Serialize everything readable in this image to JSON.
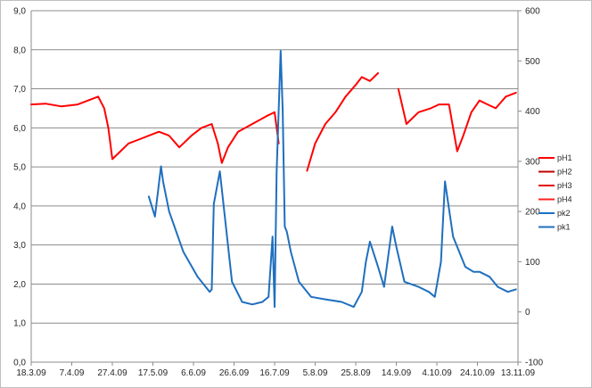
{
  "chart_data": {
    "type": "line",
    "x_ticks": [
      "18.3.09",
      "7.4.09",
      "27.4.09",
      "17.5.09",
      "6.6.09",
      "26.6.09",
      "16.7.09",
      "5.8.09",
      "25.8.09",
      "14.9.09",
      "4.10.09",
      "24.10.09",
      "13.11.09"
    ],
    "xlim": [
      "18.3.09",
      "13.11.09"
    ],
    "y_left": {
      "ylim": [
        0,
        9
      ],
      "ticks": [
        "0,0",
        "1,0",
        "2,0",
        "3,0",
        "4,0",
        "5,0",
        "6,0",
        "7,0",
        "8,0",
        "9,0"
      ]
    },
    "y_right": {
      "ylim": [
        -100,
        600
      ],
      "ticks": [
        "-100",
        "0",
        "100",
        "200",
        "300",
        "400",
        "500",
        "600"
      ]
    },
    "grid": "horizontal",
    "legend_position": "right",
    "legend": [
      {
        "name": "pH1",
        "color": "#ff0000"
      },
      {
        "name": "pH2",
        "color": "#c00000"
      },
      {
        "name": "pH3",
        "color": "#e00000"
      },
      {
        "name": "pH4",
        "color": "#ff2020"
      },
      {
        "name": "pk2",
        "color": "#1f6fbf"
      },
      {
        "name": "pk1",
        "color": "#1f6fbf"
      }
    ],
    "series": [
      {
        "legend_index": 0,
        "axis": "left",
        "color": "#ff0000",
        "x": [
          "18.3.09",
          "25.3.09",
          "2.4.09",
          "10.4.09",
          "15.4.09",
          "20.4.09",
          "23.4.09",
          "25.4.09",
          "27.4.09",
          "1.5.09",
          "5.5.09",
          "10.5.09",
          "15.5.09",
          "20.5.09",
          "25.5.09",
          "30.5.09",
          "5.6.09",
          "10.6.09",
          "15.6.09",
          "18.6.09",
          "20.6.09",
          "23.6.09",
          "28.6.09",
          "5.7.09",
          "12.7.09",
          "16.7.09",
          "18.7.09"
        ],
        "y": [
          6.6,
          6.62,
          6.55,
          6.6,
          6.7,
          6.8,
          6.5,
          6.0,
          5.2,
          5.4,
          5.6,
          5.7,
          5.8,
          5.9,
          5.8,
          5.5,
          5.8,
          6.0,
          6.1,
          5.6,
          5.1,
          5.5,
          5.9,
          6.1,
          6.3,
          6.4,
          5.6
        ]
      },
      {
        "legend_index": 2,
        "axis": "left",
        "color": "#ff0000",
        "x": [
          "1.8.09",
          "5.8.09",
          "10.8.09",
          "15.8.09",
          "20.8.09",
          "25.8.09",
          "28.8.09",
          "1.9.09",
          "5.9.09"
        ],
        "y": [
          4.9,
          5.6,
          6.1,
          6.4,
          6.8,
          7.1,
          7.3,
          7.2,
          7.4
        ]
      },
      {
        "legend_index": 3,
        "axis": "left",
        "color": "#ff0000",
        "x": [
          "15.9.09",
          "19.9.09",
          "25.9.09",
          "1.10.09",
          "5.10.09",
          "10.10.09",
          "14.10.09",
          "17.10.09",
          "21.10.09",
          "25.10.09",
          "29.10.09",
          "2.11.09",
          "7.11.09",
          "12.11.09"
        ],
        "y": [
          7.0,
          6.1,
          6.4,
          6.5,
          6.6,
          6.6,
          5.4,
          5.8,
          6.4,
          6.7,
          6.6,
          6.5,
          6.8,
          6.9
        ]
      },
      {
        "legend_index": 4,
        "axis": "right",
        "color": "#1f6fbf",
        "x": [
          "15.5.09",
          "18.5.09",
          "21.5.09",
          "22.5.09",
          "25.5.09",
          "1.6.09",
          "8.6.09",
          "12.6.09",
          "14.6.09",
          "15.6.09",
          "16.6.09",
          "19.6.09",
          "25.6.09",
          "30.6.09",
          "5.7.09",
          "10.7.09",
          "13.7.09",
          "15.7.09",
          "16.7.09",
          "17.7.09",
          "19.7.09",
          "20.7.09",
          "21.7.09",
          "22.7.09",
          "24.7.09",
          "28.7.09",
          "3.8.09",
          "10.8.09",
          "18.8.09",
          "24.8.09",
          "28.8.09",
          "30.8.09",
          "1.9.09",
          "5.9.09",
          "8.9.09",
          "12.9.09",
          "14.9.09",
          "18.9.09",
          "25.9.09",
          "30.9.09",
          "3.10.09",
          "6.10.09",
          "8.10.09",
          "12.10.09",
          "18.10.09",
          "22.10.09",
          "25.10.09",
          "30.10.09",
          "3.11.09",
          "8.11.09",
          "12.11.09"
        ],
        "y": [
          230,
          190,
          290,
          260,
          200,
          120,
          70,
          50,
          40,
          45,
          215,
          280,
          60,
          20,
          15,
          20,
          30,
          150,
          10,
          280,
          520,
          400,
          170,
          160,
          120,
          60,
          30,
          25,
          20,
          10,
          40,
          100,
          140,
          90,
          50,
          170,
          130,
          60,
          50,
          40,
          30,
          100,
          260,
          150,
          90,
          80,
          80,
          70,
          50,
          40,
          45
        ]
      }
    ]
  }
}
